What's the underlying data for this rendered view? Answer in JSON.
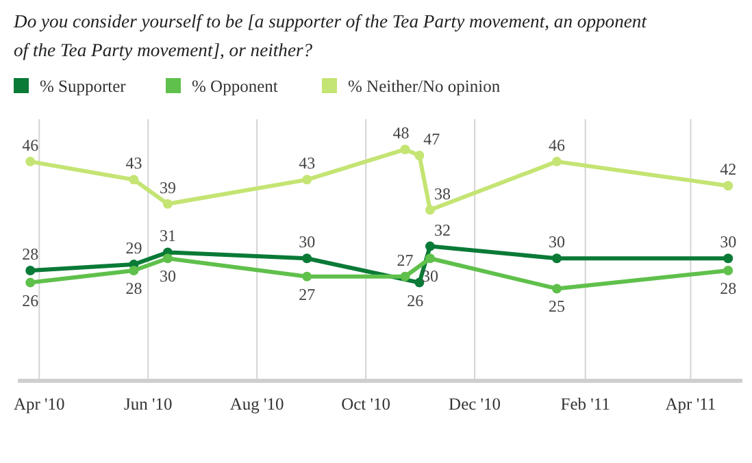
{
  "chart_data": {
    "type": "line",
    "title": "Do you consider yourself to be [a supporter of the Tea Party movement, an opponent of the Tea Party movement], or neither?",
    "series": [
      {
        "name": "% Supporter",
        "color": "#0a7a37",
        "x": [
          "2010-03-27",
          "2010-05-24",
          "2010-06-12",
          "2010-08-29",
          "2010-10-31",
          "2010-11-06",
          "2011-01-16",
          "2011-04-22"
        ],
        "values": [
          28,
          29,
          31,
          30,
          26,
          32,
          30,
          30
        ]
      },
      {
        "name": "% Opponent",
        "color": "#5fc04b",
        "x": [
          "2010-03-27",
          "2010-05-24",
          "2010-06-12",
          "2010-08-29",
          "2010-10-23",
          "2010-11-06",
          "2011-01-16",
          "2011-04-22"
        ],
        "values": [
          26,
          28,
          30,
          27,
          27,
          30,
          25,
          28
        ]
      },
      {
        "name": "% Neither/No opinion",
        "color": "#c4e473",
        "x": [
          "2010-03-27",
          "2010-05-24",
          "2010-06-12",
          "2010-08-29",
          "2010-10-23",
          "2010-10-31",
          "2010-11-06",
          "2011-01-16",
          "2011-04-22"
        ],
        "values": [
          46,
          43,
          39,
          43,
          48,
          47,
          38,
          46,
          42
        ]
      }
    ],
    "xlim": [
      "2010-03-20",
      "2011-04-30"
    ],
    "xticks": [
      {
        "value": "2010-04-01",
        "label": "Apr '10"
      },
      {
        "value": "2010-06-01",
        "label": "Jun '10"
      },
      {
        "value": "2010-08-01",
        "label": "Aug '10"
      },
      {
        "value": "2010-10-01",
        "label": "Oct '10"
      },
      {
        "value": "2010-12-01",
        "label": "Dec '10"
      },
      {
        "value": "2011-02-01",
        "label": "Feb '11"
      },
      {
        "value": "2011-04-01",
        "label": "Apr '11"
      }
    ],
    "ylim": [
      10,
      53
    ],
    "tick_labels": "x",
    "grid": "x",
    "legend": "top left",
    "marker": "circle",
    "line_style": "solid",
    "data_labels": true
  }
}
